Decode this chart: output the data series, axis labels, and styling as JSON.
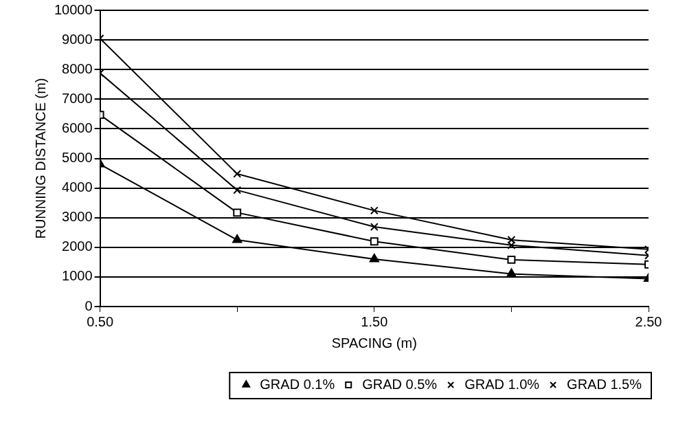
{
  "chart_data": {
    "type": "line",
    "xlabel": "SPACING (m)",
    "ylabel": "RUNNING DISTANCE (m)",
    "x": [
      0.5,
      1.0,
      1.5,
      2.0,
      2.5
    ],
    "series": [
      {
        "name": "GRAD 0.1%",
        "color": "#000000",
        "marker": "triangle",
        "values": [
          4800,
          2250,
          1600,
          1100,
          940
        ]
      },
      {
        "name": "GRAD 0.5%",
        "color": "#000000",
        "marker": "square",
        "values": [
          6470,
          3170,
          2200,
          1580,
          1420
        ]
      },
      {
        "name": "GRAD 1.0%",
        "color": "#000000",
        "marker": "cross",
        "values": [
          7880,
          3930,
          2690,
          2070,
          1720
        ]
      },
      {
        "name": "GRAD 1.5%",
        "color": "#000000",
        "marker": "cross",
        "values": [
          9050,
          4480,
          3240,
          2250,
          1930
        ]
      }
    ],
    "xlim": [
      0.5,
      2.5
    ],
    "xticks": [
      {
        "value": 0.5,
        "label": "0.50"
      },
      {
        "value": 1.0,
        "label": null
      },
      {
        "value": 1.5,
        "label": "1.50"
      },
      {
        "value": 2.0,
        "label": null
      },
      {
        "value": 2.5,
        "label": "2.50"
      }
    ],
    "ylim": [
      0,
      10000
    ],
    "yticks": [
      0,
      1000,
      2000,
      3000,
      4000,
      5000,
      6000,
      7000,
      8000,
      9000,
      10000
    ],
    "grid": "y",
    "legend": "bottom",
    "line_style": "solid"
  }
}
